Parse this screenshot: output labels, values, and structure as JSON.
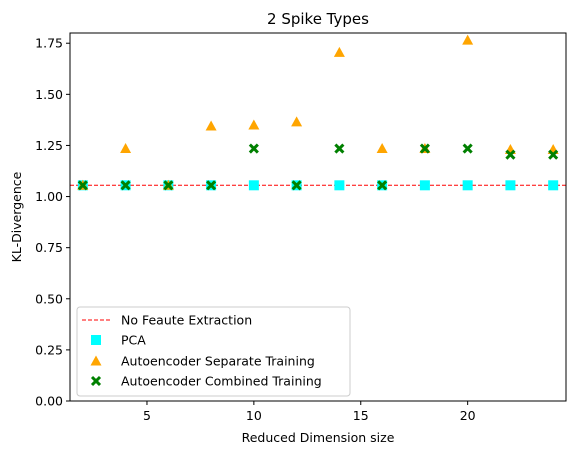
{
  "chart_data": {
    "type": "scatter",
    "title": "2 Spike Types",
    "xlabel": "Reduced Dimension size",
    "ylabel": "KL-Divergence",
    "xlim": [
      1.4,
      24.6
    ],
    "ylim": [
      0.0,
      1.8
    ],
    "xticks": [
      5,
      10,
      15,
      20
    ],
    "yticks": [
      0.0,
      0.25,
      0.5,
      0.75,
      1.0,
      1.25,
      1.5,
      1.75
    ],
    "ytick_labels": [
      "0.00",
      "0.25",
      "0.50",
      "0.75",
      "1.00",
      "1.25",
      "1.50",
      "1.75"
    ],
    "grid": false,
    "legend_position": "lower-left",
    "baseline": {
      "name": "No Feaute Extraction",
      "y": 1.055,
      "color": "#ff0000",
      "style": "dashed"
    },
    "series": [
      {
        "name": "PCA",
        "marker": "square",
        "color": "#00ffff",
        "x": [
          2,
          4,
          6,
          8,
          10,
          12,
          14,
          16,
          18,
          20,
          22,
          24
        ],
        "y": [
          1.055,
          1.055,
          1.055,
          1.055,
          1.055,
          1.055,
          1.055,
          1.055,
          1.055,
          1.055,
          1.055,
          1.055
        ]
      },
      {
        "name": "Autoencoder Separate Training",
        "marker": "triangle",
        "color": "#ffa500",
        "x": [
          2,
          4,
          6,
          8,
          10,
          12,
          14,
          16,
          18,
          20,
          22,
          24
        ],
        "y": [
          1.055,
          1.235,
          1.055,
          1.345,
          1.35,
          1.365,
          1.705,
          1.235,
          1.235,
          1.765,
          1.23,
          1.23
        ]
      },
      {
        "name": "Autoencoder Combined Training",
        "marker": "x",
        "color": "#008000",
        "x": [
          2,
          4,
          6,
          8,
          10,
          12,
          14,
          16,
          18,
          20,
          22,
          24
        ],
        "y": [
          1.055,
          1.055,
          1.055,
          1.055,
          1.235,
          1.055,
          1.235,
          1.055,
          1.235,
          1.235,
          1.205,
          1.205
        ]
      }
    ]
  }
}
